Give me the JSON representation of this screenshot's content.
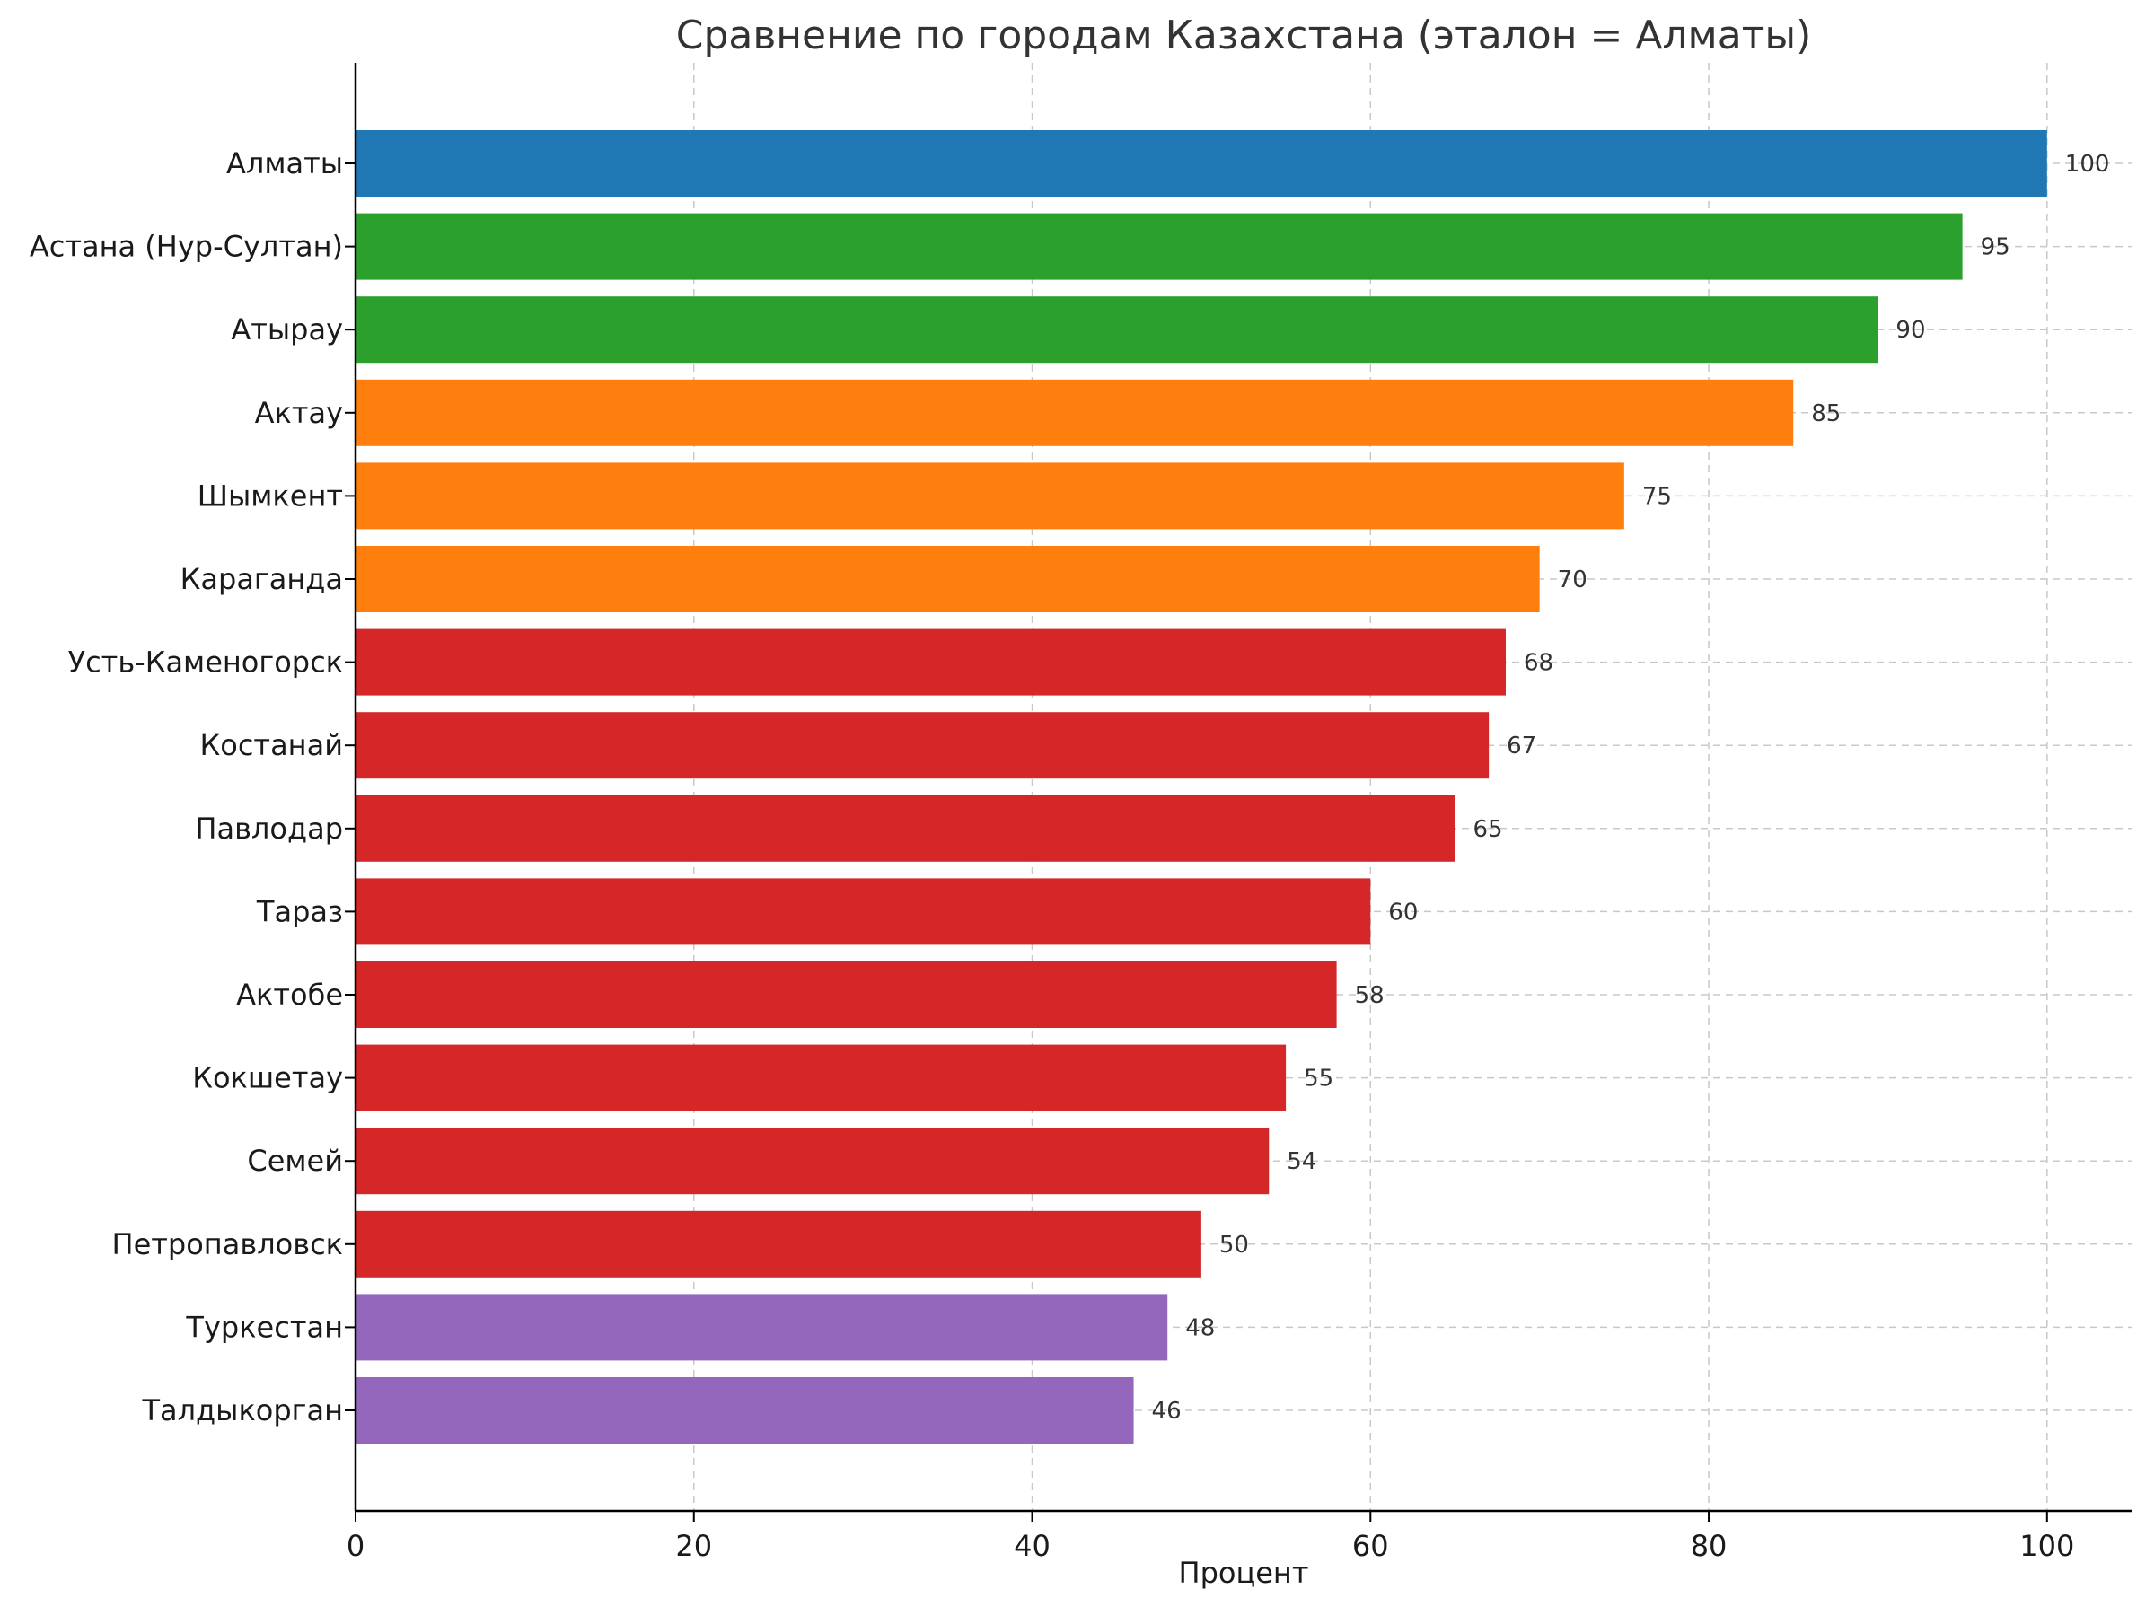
{
  "chart_data": {
    "type": "bar",
    "orientation": "horizontal",
    "title": "Сравнение по городам Казахстана (эталон = Алматы)",
    "xlabel": "Процент",
    "ylabel": "",
    "xlim": [
      0,
      105
    ],
    "xticks": [
      0,
      20,
      40,
      60,
      80,
      100
    ],
    "grid": true,
    "categories": [
      "Алматы",
      "Астана (Нур-Султан)",
      "Атырау",
      "Актау",
      "Шымкент",
      "Караганда",
      "Усть-Каменогорск",
      "Костанай",
      "Павлодар",
      "Тараз",
      "Актобе",
      "Кокшетау",
      "Семей",
      "Петропавловск",
      "Туркестан",
      "Талдыкорган"
    ],
    "values": [
      100,
      95,
      90,
      85,
      75,
      70,
      68,
      67,
      65,
      60,
      58,
      55,
      54,
      50,
      48,
      46
    ],
    "colors": [
      "#1f77b4",
      "#2ca02c",
      "#2ca02c",
      "#ff7f0e",
      "#ff7f0e",
      "#ff7f0e",
      "#d62728",
      "#d62728",
      "#d62728",
      "#d62728",
      "#d62728",
      "#d62728",
      "#d62728",
      "#d62728",
      "#9467bd",
      "#9467bd"
    ]
  }
}
